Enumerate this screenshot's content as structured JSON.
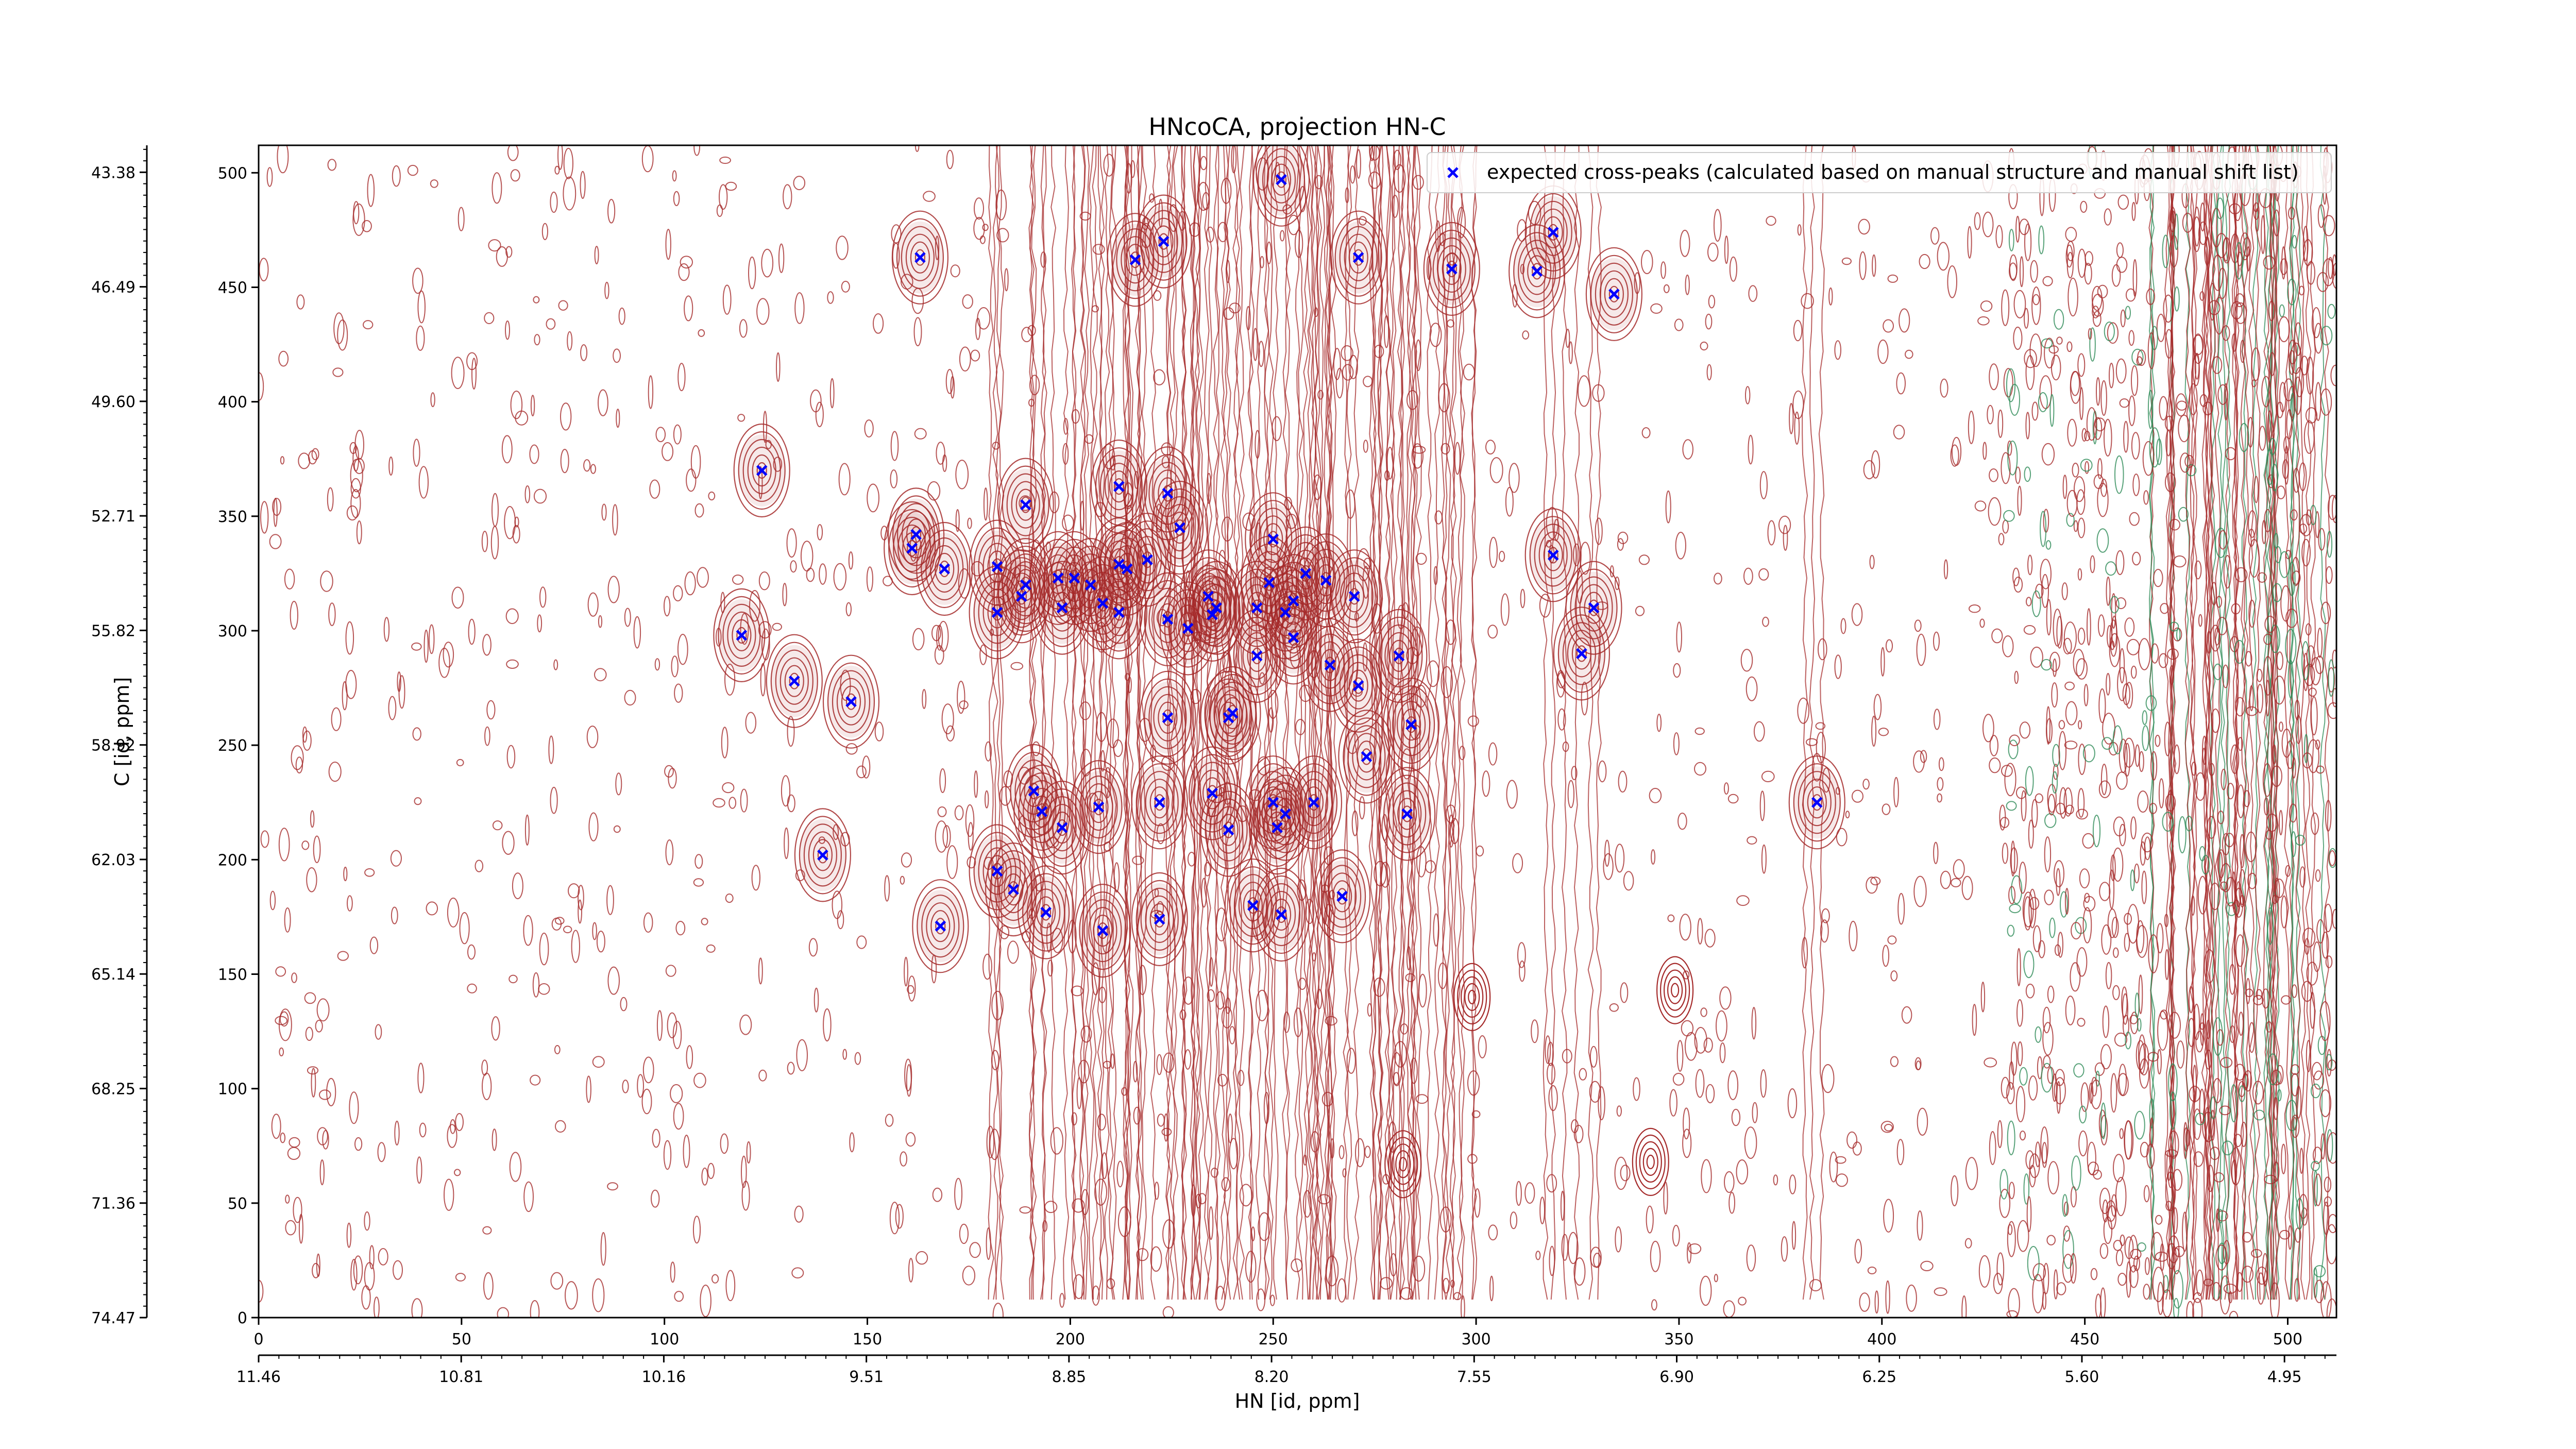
{
  "chart_data": {
    "type": "scatter",
    "title": "HNcoCA, projection HN-C",
    "xlabel": "HN [id, ppm]",
    "ylabel": "C [id, ppm]",
    "x_index": {
      "range": [
        0,
        512
      ],
      "ticks": [
        "0",
        "50",
        "100",
        "150",
        "200",
        "250",
        "300",
        "350",
        "400",
        "450",
        "500"
      ]
    },
    "x_ppm_ticks": [
      "11.46",
      "10.81",
      "10.16",
      "9.51",
      "8.85",
      "8.20",
      "7.55",
      "6.90",
      "6.25",
      "5.60",
      "4.95"
    ],
    "y_index": {
      "range": [
        0,
        512
      ],
      "ticks": [
        "0",
        "50",
        "100",
        "150",
        "200",
        "250",
        "300",
        "350",
        "400",
        "450",
        "500"
      ]
    },
    "y_ppm_ticks": [
      "74.47",
      "71.36",
      "68.25",
      "65.14",
      "62.03",
      "58.92",
      "55.82",
      "52.71",
      "49.60",
      "46.49",
      "43.38"
    ],
    "legend": {
      "label": "expected cross-peaks (calculated based on manual structure and manual shift list)",
      "placement": "upper-right"
    },
    "grid": false,
    "colors": {
      "marker": "#0000ff",
      "contour_positive": "#a52a2a",
      "contour_negative": "#2e8b57"
    },
    "series": [
      {
        "name": "expected cross-peaks (calculated based on manual structure and manual shift list)",
        "marker": "x",
        "points": [
          [
            252,
            497
          ],
          [
            223,
            470
          ],
          [
            163,
            463
          ],
          [
            216,
            462
          ],
          [
            271,
            463
          ],
          [
            294,
            458
          ],
          [
            315,
            457
          ],
          [
            319,
            474
          ],
          [
            334,
            447
          ],
          [
            124,
            370
          ],
          [
            212,
            363
          ],
          [
            224,
            360
          ],
          [
            189,
            355
          ],
          [
            227,
            345
          ],
          [
            162,
            342
          ],
          [
            161,
            336
          ],
          [
            169,
            327
          ],
          [
            182,
            328
          ],
          [
            189,
            320
          ],
          [
            197,
            323
          ],
          [
            201,
            323
          ],
          [
            205,
            320
          ],
          [
            212,
            329
          ],
          [
            214,
            327
          ],
          [
            219,
            331
          ],
          [
            250,
            340
          ],
          [
            249,
            321
          ],
          [
            258,
            325
          ],
          [
            263,
            322
          ],
          [
            270,
            315
          ],
          [
            319,
            333
          ],
          [
            182,
            308
          ],
          [
            188,
            315
          ],
          [
            198,
            310
          ],
          [
            208,
            312
          ],
          [
            212,
            308
          ],
          [
            224,
            305
          ],
          [
            229,
            301
          ],
          [
            234,
            315
          ],
          [
            235,
            307
          ],
          [
            236,
            310
          ],
          [
            246,
            310
          ],
          [
            253,
            308
          ],
          [
            255,
            313
          ],
          [
            255,
            297
          ],
          [
            329,
            310
          ],
          [
            119,
            298
          ],
          [
            132,
            278
          ],
          [
            146,
            269
          ],
          [
            246,
            289
          ],
          [
            264,
            285
          ],
          [
            271,
            276
          ],
          [
            281,
            289
          ],
          [
            326,
            290
          ],
          [
            224,
            262
          ],
          [
            239,
            262
          ],
          [
            240,
            264
          ],
          [
            284,
            259
          ],
          [
            273,
            245
          ],
          [
            191,
            230
          ],
          [
            193,
            221
          ],
          [
            198,
            214
          ],
          [
            207,
            223
          ],
          [
            222,
            225
          ],
          [
            235,
            229
          ],
          [
            239,
            213
          ],
          [
            250,
            225
          ],
          [
            253,
            220
          ],
          [
            260,
            225
          ],
          [
            283,
            220
          ],
          [
            251,
            214
          ],
          [
            384,
            225
          ],
          [
            139,
            202
          ],
          [
            182,
            195
          ],
          [
            186,
            187
          ],
          [
            194,
            177
          ],
          [
            208,
            169
          ],
          [
            222,
            174
          ],
          [
            168,
            171
          ],
          [
            245,
            180
          ],
          [
            252,
            176
          ],
          [
            267,
            184
          ]
        ]
      }
    ]
  }
}
